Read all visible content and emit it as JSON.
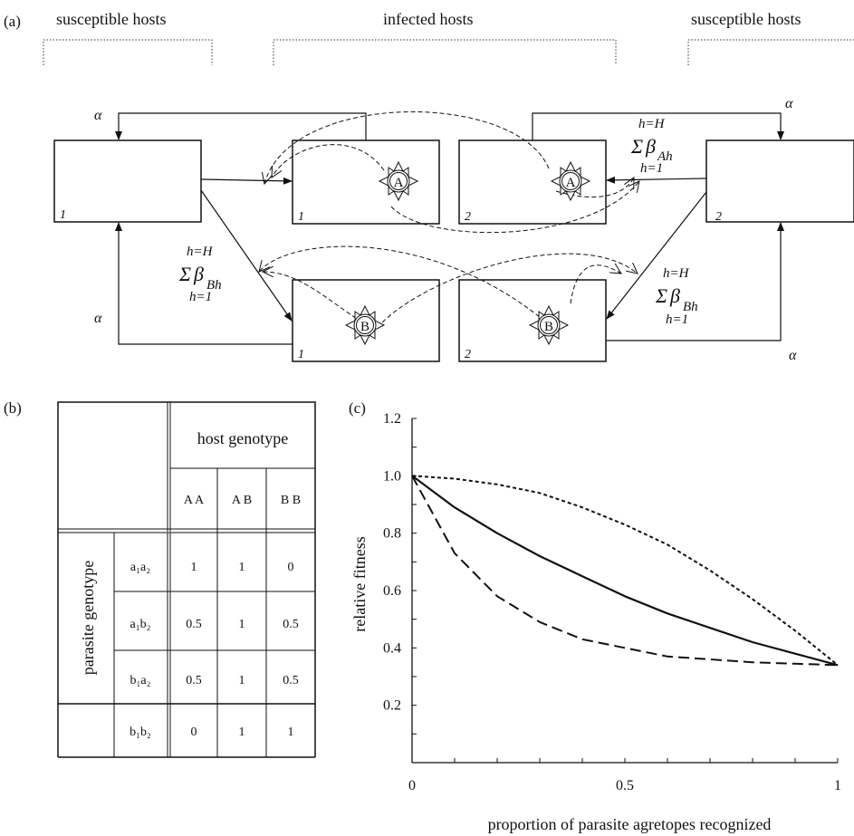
{
  "panel_a": {
    "label": "(a)",
    "headers": {
      "left": "susceptible hosts",
      "middle": "infected hosts",
      "right": "susceptible hosts"
    },
    "box_numbers": {
      "s1": "1",
      "ia1": "1",
      "ia2": "2",
      "s2": "2",
      "ib1": "1",
      "ib2": "2"
    },
    "parasites": {
      "a_left": "A",
      "a_right": "A",
      "b_left": "B",
      "b_right": "B"
    },
    "alpha": "α",
    "sum_top": "h=H",
    "sum_sigma": "Σ",
    "sum_beta": "β",
    "sum_bottom": "h=1",
    "sub_ah": "Ah",
    "sub_bh": "Bh"
  },
  "panel_b": {
    "label": "(b)",
    "host_header": "host genotype",
    "parasite_header": "parasite genotype",
    "columns": [
      "A A",
      "A B",
      "B B"
    ],
    "rows": [
      {
        "genotype": "a₁a₂",
        "values": [
          "1",
          "1",
          "0"
        ]
      },
      {
        "genotype": "a₁b₂",
        "values": [
          "0.5",
          "1",
          "0.5"
        ]
      },
      {
        "genotype": "b₁a₂",
        "values": [
          "0.5",
          "1",
          "0.5"
        ]
      },
      {
        "genotype": "b₁b₂",
        "values": [
          "0",
          "1",
          "1"
        ]
      }
    ]
  },
  "panel_c": {
    "label": "(c)",
    "chart_data": {
      "type": "line",
      "xlabel": "proportion of parasite agretopes recognized",
      "ylabel": "relative fitness",
      "xlim": [
        0,
        1
      ],
      "ylim": [
        0,
        1.2
      ],
      "x_ticks": [
        "0",
        "0.5",
        "1"
      ],
      "y_ticks": [
        "0.2",
        "0.4",
        "0.6",
        "0.8",
        "1.0",
        "1.2"
      ],
      "series": [
        {
          "style": "dotted",
          "x": [
            0,
            0.1,
            0.2,
            0.3,
            0.4,
            0.5,
            0.6,
            0.7,
            0.8,
            0.9,
            1.0
          ],
          "y": [
            1.0,
            0.99,
            0.97,
            0.94,
            0.89,
            0.83,
            0.76,
            0.67,
            0.57,
            0.46,
            0.34
          ]
        },
        {
          "style": "solid",
          "x": [
            0,
            0.1,
            0.2,
            0.3,
            0.4,
            0.5,
            0.6,
            0.7,
            0.8,
            0.9,
            1.0
          ],
          "y": [
            1.0,
            0.89,
            0.8,
            0.72,
            0.65,
            0.58,
            0.52,
            0.47,
            0.42,
            0.38,
            0.34
          ]
        },
        {
          "style": "dashed",
          "x": [
            0,
            0.1,
            0.2,
            0.3,
            0.4,
            0.5,
            0.6,
            0.7,
            0.8,
            0.9,
            1.0
          ],
          "y": [
            1.0,
            0.73,
            0.58,
            0.49,
            0.43,
            0.4,
            0.37,
            0.36,
            0.35,
            0.345,
            0.34
          ]
        }
      ]
    }
  }
}
